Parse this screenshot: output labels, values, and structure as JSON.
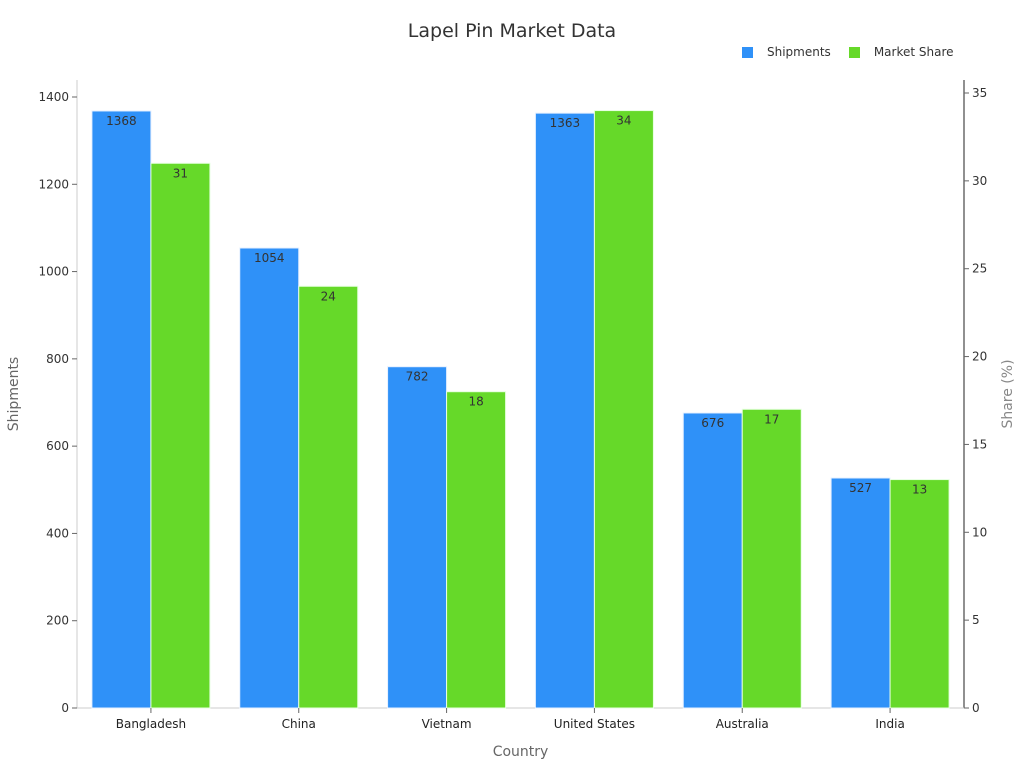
{
  "chart_data": {
    "type": "bar",
    "title": "Lapel Pin Market Data",
    "xlabel": "Country",
    "ylabel": "Shipments",
    "y2label": "Share (%)",
    "categories": [
      "Bangladesh",
      "China",
      "Vietnam",
      "United States",
      "Australia",
      "India"
    ],
    "series": [
      {
        "name": "Shipments",
        "axis": "left",
        "color": "#2f91f8",
        "values": [
          1368,
          1054,
          782,
          1363,
          676,
          527
        ]
      },
      {
        "name": "Market Share",
        "axis": "right",
        "color": "#66d929",
        "values": [
          31,
          24,
          18,
          34,
          17,
          13
        ]
      }
    ],
    "ylim": [
      0,
      1400
    ],
    "y_ticks": [
      0,
      200,
      400,
      600,
      800,
      1000,
      1200,
      1400
    ],
    "y2lim": [
      0,
      35
    ],
    "y2_ticks": [
      0,
      5,
      10,
      15,
      20,
      25,
      30,
      35
    ],
    "grid": false,
    "legend_position": "top-right"
  },
  "legend": {
    "items": [
      {
        "label": "Shipments",
        "color": "#2f91f8"
      },
      {
        "label": "Market Share",
        "color": "#66d929"
      }
    ]
  }
}
